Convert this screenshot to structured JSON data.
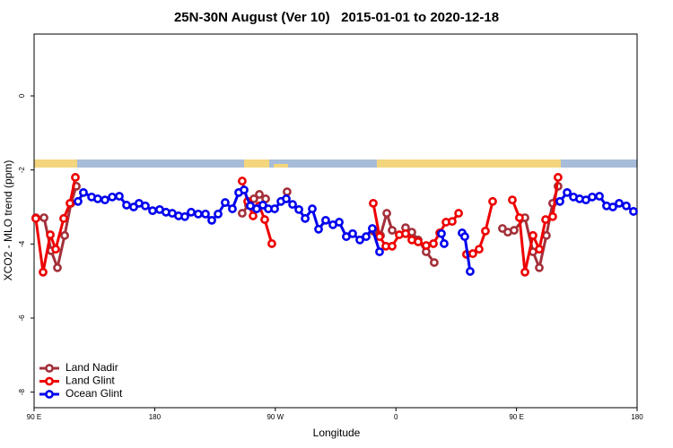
{
  "chart_data": {
    "type": "line",
    "title": "25N-30N August (Ver 10)   2015-01-01 to 2020-12-18",
    "x_label": "Longitude",
    "y_label": "XCO2 - MLO trend (ppm)",
    "xlim": [
      90,
      540
    ],
    "ylim": [
      -8.42,
      1.67
    ],
    "xticks": [
      {
        "value": 90,
        "label": "90 E"
      },
      180,
      {
        "value": 270,
        "label": "90 W"
      },
      {
        "value": 360,
        "label": "0"
      },
      {
        "value": 450,
        "label": "90 E"
      },
      {
        "value": 540,
        "label": "180"
      }
    ],
    "yticks": [
      -8,
      -6,
      -4,
      -2,
      0
    ],
    "legend": "bottom-left",
    "series": [
      {
        "name": "Land Nadir",
        "color": "#a3303a",
        "x": [
          91.3,
          97.4,
          102.7,
          107.4,
          112.8,
          117.5,
          121.5,
          null,
          245.3,
          250.0,
          254.0,
          258.1,
          262.8,
          null,
          278.8,
          null,
          343.1,
          348.5,
          353.2,
          357.2,
          null,
          367.2,
          371.9,
          376.6,
          382.6,
          388.6,
          null,
          439.5,
          443.5,
          448.2,
          456.3,
          462.3,
          467.0,
          472.3,
          477.0,
          481.0
        ],
        "values": [
          -3.29,
          -3.29,
          -4.18,
          -4.64,
          -3.77,
          -2.9,
          -2.44,
          null,
          -3.17,
          -2.95,
          -2.78,
          -2.66,
          -2.78,
          null,
          -2.59,
          null,
          -3.65,
          -3.77,
          -3.17,
          -3.63,
          null,
          -3.56,
          -3.68,
          -3.89,
          -4.21,
          -4.5,
          null,
          -3.58,
          -3.68,
          -3.63,
          -3.29,
          -4.21,
          -4.64,
          -3.77,
          -2.9,
          -2.44
        ]
      },
      {
        "name": "Land Glint",
        "color": "#ee0000",
        "x": [
          91.3,
          96.7,
          102.1,
          106.1,
          112.1,
          116.8,
          120.8,
          null,
          245.3,
          249.4,
          253.4,
          258.1,
          262.1,
          267.4,
          null,
          343.1,
          347.8,
          352.5,
          357.2,
          362.5,
          367.2,
          371.9,
          376.6,
          382.6,
          388.0,
          392.7,
          397.4,
          402.0,
          406.8,
          null,
          412.7,
          417.4,
          422.1,
          426.8,
          432.2,
          null,
          446.9,
          452.2,
          456.3,
          462.3,
          467.0,
          471.7,
          477.0,
          481.0
        ],
        "values": [
          -3.31,
          -4.76,
          -3.75,
          -4.14,
          -3.31,
          -2.9,
          -2.2,
          null,
          -2.3,
          -2.85,
          -3.24,
          -2.97,
          -3.34,
          -3.99,
          null,
          -2.9,
          -3.8,
          -4.06,
          -4.06,
          -3.75,
          -3.72,
          -3.89,
          -3.94,
          -4.04,
          -3.99,
          -3.7,
          -3.41,
          -3.39,
          -3.17,
          null,
          -4.28,
          -4.26,
          -4.14,
          -3.65,
          -2.85,
          null,
          -2.81,
          -3.29,
          -4.76,
          -3.77,
          -4.14,
          -3.34,
          -3.26,
          -2.2
        ]
      },
      {
        "name": "Ocean Glint",
        "color": "#0000ee",
        "x": [
          122.8,
          126.8,
          132.9,
          137.5,
          142.9,
          148.3,
          153.6,
          159.0,
          164.3,
          168.3,
          173.0,
          178.4,
          183.7,
          188.4,
          193.1,
          197.8,
          202.5,
          207.2,
          212.5,
          217.9,
          222.6,
          227.3,
          232.6,
          238.0,
          242.7,
          246.7,
          251.4,
          256.1,
          260.7,
          264.8,
          269.5,
          274.2,
          278.2,
          282.9,
          287.6,
          292.3,
          297.6,
          302.3,
          307.6,
          313.0,
          317.7,
          323.0,
          327.7,
          333.1,
          337.8,
          342.4,
          347.8,
          null,
          394.0,
          396.0,
          null,
          409.4,
          411.4,
          415.4,
          null,
          482.4,
          487.8,
          492.5,
          497.1,
          501.8,
          506.5,
          511.9,
          517.2,
          521.9,
          526.6,
          531.9,
          537.3
        ],
        "values": [
          -2.85,
          -2.61,
          -2.73,
          -2.78,
          -2.81,
          -2.73,
          -2.71,
          -2.95,
          -3.0,
          -2.9,
          -2.97,
          -3.1,
          -3.07,
          -3.14,
          -3.17,
          -3.24,
          -3.26,
          -3.14,
          -3.19,
          -3.19,
          -3.36,
          -3.19,
          -2.88,
          -3.05,
          -2.61,
          -2.54,
          -2.97,
          -3.05,
          -2.95,
          -3.05,
          -3.05,
          -2.85,
          -2.78,
          -2.93,
          -3.07,
          -3.31,
          -3.05,
          -3.6,
          -3.36,
          -3.48,
          -3.41,
          -3.8,
          -3.72,
          -3.89,
          -3.8,
          -3.58,
          -4.21,
          null,
          -3.72,
          -3.99,
          null,
          -3.7,
          -3.8,
          -4.74,
          null,
          -2.85,
          -2.61,
          -2.73,
          -2.78,
          -2.81,
          -2.73,
          -2.71,
          -2.97,
          -3.0,
          -2.9,
          -2.97,
          -3.12
        ]
      }
    ]
  }
}
